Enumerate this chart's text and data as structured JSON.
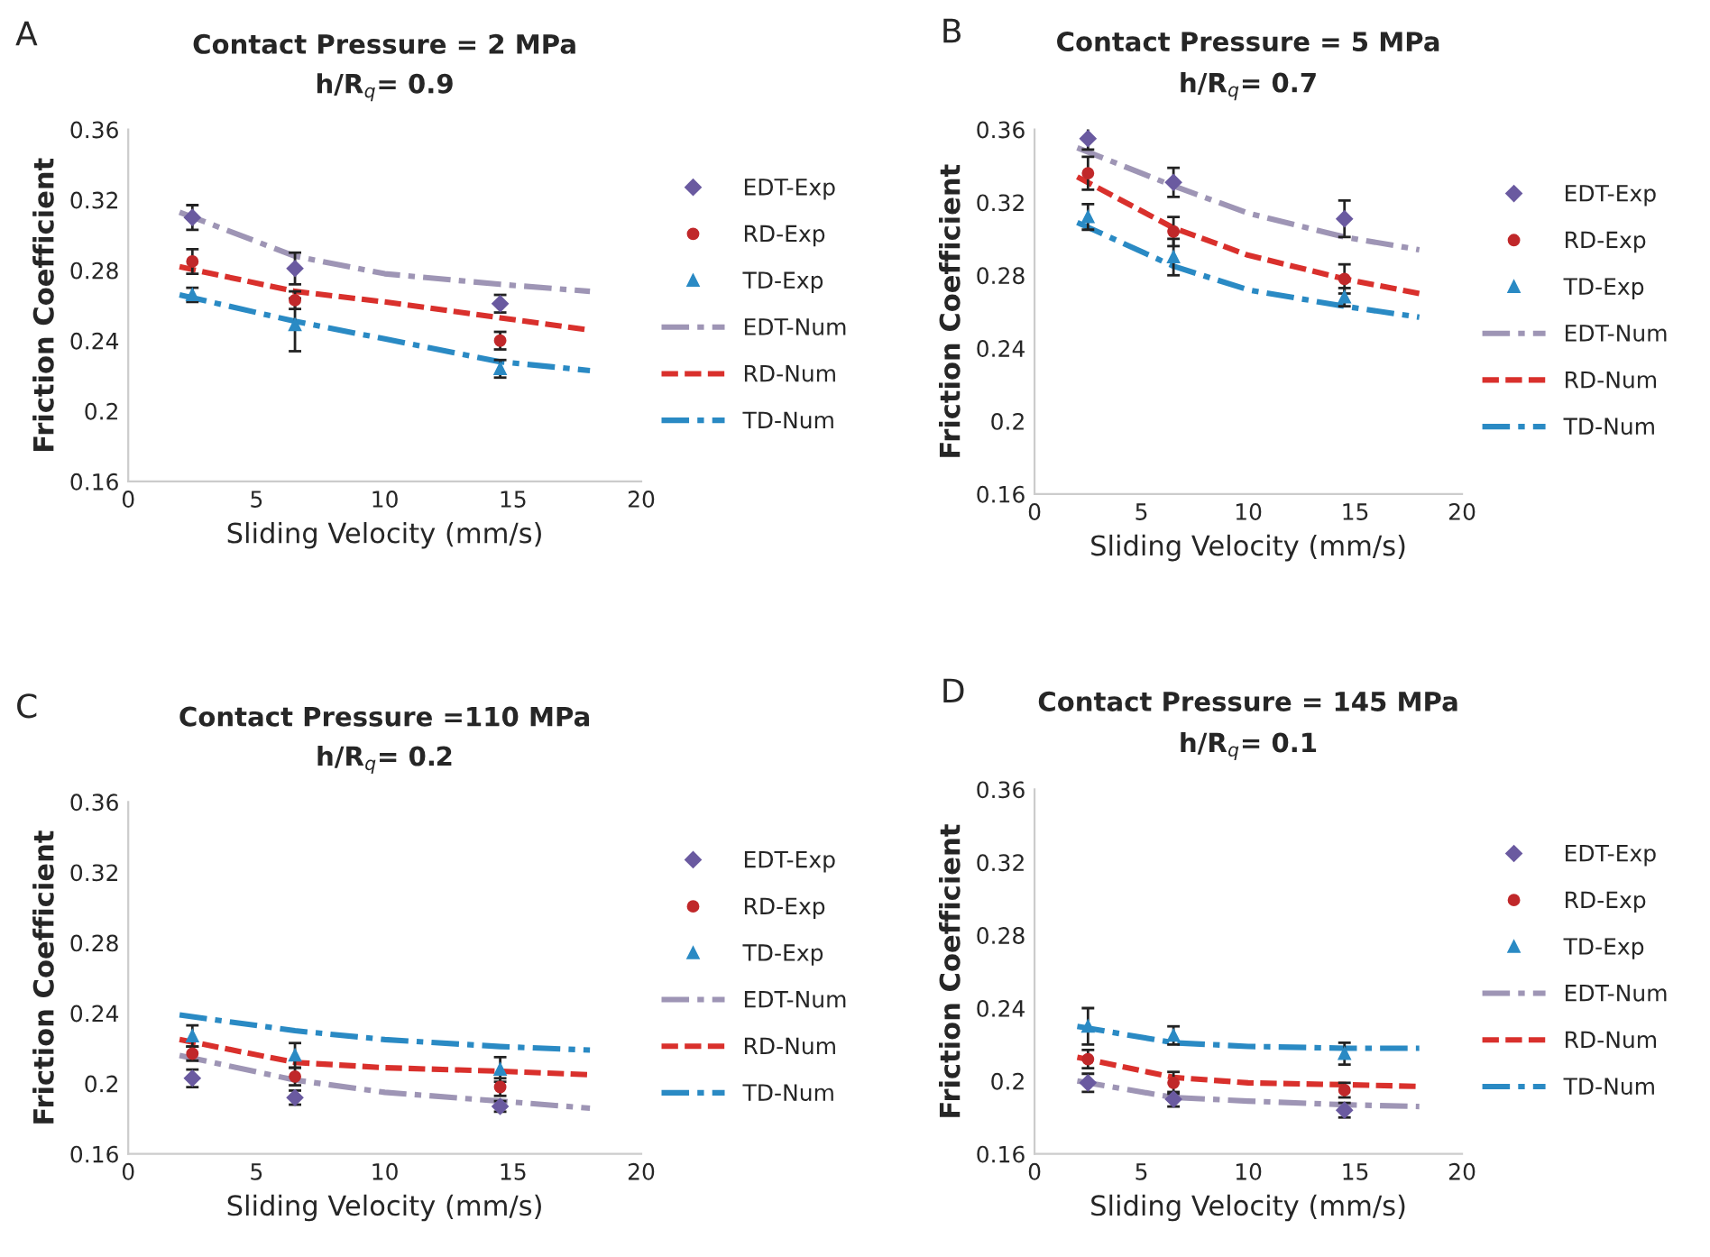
{
  "chart_data": [
    {
      "type": "line",
      "title": "Contact Pressure = 2 MPa",
      "subtitle": "h/R$_{q}$= 0.9",
      "xlabel": "Sliding Velocity (mm/s)",
      "ylabel": "Friction Coefficient",
      "annotations": [
        "A"
      ],
      "xlim": [
        0,
        20
      ],
      "xticks": [
        0,
        5,
        10,
        15,
        20
      ],
      "ylim": [
        0.16,
        0.36
      ],
      "yticks": [
        0.16,
        0.2,
        0.24,
        0.28,
        0.32,
        0.36
      ],
      "grid": false,
      "legend": "right",
      "series": [
        {
          "name": "EDT-Exp",
          "type": "scatter",
          "marker": "diamond",
          "color": "#6a5aa0",
          "x": [
            2.5,
            6.5,
            14.5
          ],
          "values": [
            0.31,
            0.281,
            0.261
          ],
          "errors": [
            0.007,
            0.009,
            0.005
          ]
        },
        {
          "name": "RD-Exp",
          "type": "scatter",
          "marker": "circle",
          "color": "#c0282a",
          "x": [
            2.5,
            6.5,
            14.5
          ],
          "values": [
            0.285,
            0.263,
            0.24
          ],
          "errors": [
            0.007,
            0.005,
            0.005
          ]
        },
        {
          "name": "TD-Exp",
          "type": "scatter",
          "marker": "triangle",
          "color": "#2a8ac4",
          "x": [
            2.5,
            6.5,
            14.5
          ],
          "values": [
            0.266,
            0.249,
            0.224
          ],
          "errors": [
            0.004,
            0.015,
            0.005
          ]
        },
        {
          "name": "EDT-Num",
          "line_style": "dashdot",
          "color": "#9e95b5",
          "x": [
            2,
            6.5,
            10,
            14.5,
            18
          ],
          "values": [
            0.313,
            0.288,
            0.278,
            0.272,
            0.268
          ]
        },
        {
          "name": "RD-Num",
          "line_style": "dashed",
          "color": "#d9302c",
          "x": [
            2,
            6.5,
            10,
            14.5,
            18
          ],
          "values": [
            0.282,
            0.268,
            0.262,
            0.253,
            0.246
          ]
        },
        {
          "name": "TD-Num",
          "line_style": "dashdot",
          "color": "#2a8ac4",
          "x": [
            2,
            6.5,
            10,
            14.5,
            18
          ],
          "values": [
            0.266,
            0.251,
            0.241,
            0.228,
            0.223
          ]
        }
      ]
    },
    {
      "type": "line",
      "title": "Contact Pressure = 5 MPa",
      "subtitle": "h/R$_{q}$= 0.7",
      "xlabel": "Sliding Velocity (mm/s)",
      "ylabel": "Friction Coefficient",
      "annotations": [
        "B"
      ],
      "xlim": [
        0,
        20
      ],
      "xticks": [
        0,
        5,
        10,
        15,
        20
      ],
      "ylim": [
        0.16,
        0.36
      ],
      "yticks": [
        0.16,
        0.2,
        0.24,
        0.28,
        0.32,
        0.36
      ],
      "grid": false,
      "legend": "right",
      "series": [
        {
          "name": "EDT-Exp",
          "type": "scatter",
          "marker": "diamond",
          "color": "#6a5aa0",
          "x": [
            2.5,
            6.5,
            14.5
          ],
          "values": [
            0.355,
            0.331,
            0.311
          ],
          "errors": [
            0.006,
            0.008,
            0.01
          ]
        },
        {
          "name": "RD-Exp",
          "type": "scatter",
          "marker": "circle",
          "color": "#c0282a",
          "x": [
            2.5,
            6.5,
            14.5
          ],
          "values": [
            0.336,
            0.304,
            0.278
          ],
          "errors": [
            0.009,
            0.008,
            0.008
          ]
        },
        {
          "name": "TD-Exp",
          "type": "scatter",
          "marker": "triangle",
          "color": "#2a8ac4",
          "x": [
            2.5,
            6.5,
            14.5
          ],
          "values": [
            0.312,
            0.29,
            0.268
          ],
          "errors": [
            0.007,
            0.01,
            0.005
          ]
        },
        {
          "name": "EDT-Num",
          "line_style": "dashdot",
          "color": "#9e95b5",
          "x": [
            2,
            6.5,
            10,
            14.5,
            18
          ],
          "values": [
            0.35,
            0.329,
            0.314,
            0.301,
            0.294
          ]
        },
        {
          "name": "RD-Num",
          "line_style": "dashed",
          "color": "#d9302c",
          "x": [
            2,
            6.5,
            10,
            14.5,
            18
          ],
          "values": [
            0.334,
            0.306,
            0.291,
            0.278,
            0.27
          ]
        },
        {
          "name": "TD-Num",
          "line_style": "dashdot",
          "color": "#2a8ac4",
          "x": [
            2,
            6.5,
            10,
            14.5,
            18
          ],
          "values": [
            0.309,
            0.285,
            0.272,
            0.263,
            0.257
          ]
        }
      ]
    },
    {
      "type": "line",
      "title": "Contact Pressure =110 MPa",
      "subtitle": "h/R$_{q}$= 0.2",
      "xlabel": "Sliding Velocity (mm/s)",
      "ylabel": "Friction Coefficient",
      "annotations": [
        "C"
      ],
      "xlim": [
        0,
        20
      ],
      "xticks": [
        0,
        5,
        10,
        15,
        20
      ],
      "ylim": [
        0.16,
        0.36
      ],
      "yticks": [
        0.16,
        0.2,
        0.24,
        0.28,
        0.32,
        0.36
      ],
      "grid": false,
      "legend": "right",
      "series": [
        {
          "name": "EDT-Exp",
          "type": "scatter",
          "marker": "diamond",
          "color": "#6a5aa0",
          "x": [
            2.5,
            6.5,
            14.5
          ],
          "values": [
            0.203,
            0.192,
            0.187
          ],
          "errors": [
            0.005,
            0.004,
            0.003
          ]
        },
        {
          "name": "RD-Exp",
          "type": "scatter",
          "marker": "circle",
          "color": "#c0282a",
          "x": [
            2.5,
            6.5,
            14.5
          ],
          "values": [
            0.217,
            0.204,
            0.198
          ],
          "errors": [
            0.004,
            0.005,
            0.005
          ]
        },
        {
          "name": "TD-Exp",
          "type": "scatter",
          "marker": "triangle",
          "color": "#2a8ac4",
          "x": [
            2.5,
            6.5,
            14.5
          ],
          "values": [
            0.227,
            0.216,
            0.208
          ],
          "errors": [
            0.006,
            0.007,
            0.007
          ]
        },
        {
          "name": "EDT-Num",
          "line_style": "dashdot",
          "color": "#9e95b5",
          "x": [
            2,
            6.5,
            10,
            14.5,
            18
          ],
          "values": [
            0.216,
            0.202,
            0.195,
            0.19,
            0.186
          ]
        },
        {
          "name": "RD-Num",
          "line_style": "dashed",
          "color": "#d9302c",
          "x": [
            2,
            6.5,
            10,
            14.5,
            18
          ],
          "values": [
            0.225,
            0.212,
            0.209,
            0.207,
            0.205
          ]
        },
        {
          "name": "TD-Num",
          "line_style": "dashdot",
          "color": "#2a8ac4",
          "x": [
            2,
            6.5,
            10,
            14.5,
            18
          ],
          "values": [
            0.239,
            0.23,
            0.225,
            0.221,
            0.219
          ]
        }
      ]
    },
    {
      "type": "line",
      "title": "Contact Pressure = 145 MPa",
      "subtitle": "h/R$_{q}$= 0.1",
      "xlabel": "Sliding Velocity (mm/s)",
      "ylabel": "Friction Coefficient",
      "annotations": [
        "D"
      ],
      "xlim": [
        0,
        20
      ],
      "xticks": [
        0,
        5,
        10,
        15,
        20
      ],
      "ylim": [
        0.16,
        0.36
      ],
      "yticks": [
        0.16,
        0.2,
        0.24,
        0.28,
        0.32,
        0.36
      ],
      "grid": false,
      "legend": "right",
      "series": [
        {
          "name": "EDT-Exp",
          "type": "scatter",
          "marker": "diamond",
          "color": "#6a5aa0",
          "x": [
            2.5,
            6.5,
            14.5
          ],
          "values": [
            0.199,
            0.19,
            0.184
          ],
          "errors": [
            0.005,
            0.004,
            0.004
          ]
        },
        {
          "name": "RD-Exp",
          "type": "scatter",
          "marker": "circle",
          "color": "#c0282a",
          "x": [
            2.5,
            6.5,
            14.5
          ],
          "values": [
            0.212,
            0.199,
            0.195
          ],
          "errors": [
            0.005,
            0.006,
            0.004
          ]
        },
        {
          "name": "TD-Exp",
          "type": "scatter",
          "marker": "triangle",
          "color": "#2a8ac4",
          "x": [
            2.5,
            6.5,
            14.5
          ],
          "values": [
            0.23,
            0.225,
            0.215
          ],
          "errors": [
            0.01,
            0.005,
            0.006
          ]
        },
        {
          "name": "EDT-Num",
          "line_style": "dashdot",
          "color": "#9e95b5",
          "x": [
            2,
            6.5,
            10,
            14.5,
            18
          ],
          "values": [
            0.2,
            0.191,
            0.189,
            0.187,
            0.186
          ]
        },
        {
          "name": "RD-Num",
          "line_style": "dashed",
          "color": "#d9302c",
          "x": [
            2,
            6.5,
            10,
            14.5,
            18
          ],
          "values": [
            0.213,
            0.202,
            0.199,
            0.198,
            0.197
          ]
        },
        {
          "name": "TD-Num",
          "line_style": "dashdot",
          "color": "#2a8ac4",
          "x": [
            2,
            6.5,
            10,
            14.5,
            18
          ],
          "values": [
            0.23,
            0.221,
            0.219,
            0.218,
            0.218
          ]
        }
      ]
    }
  ]
}
